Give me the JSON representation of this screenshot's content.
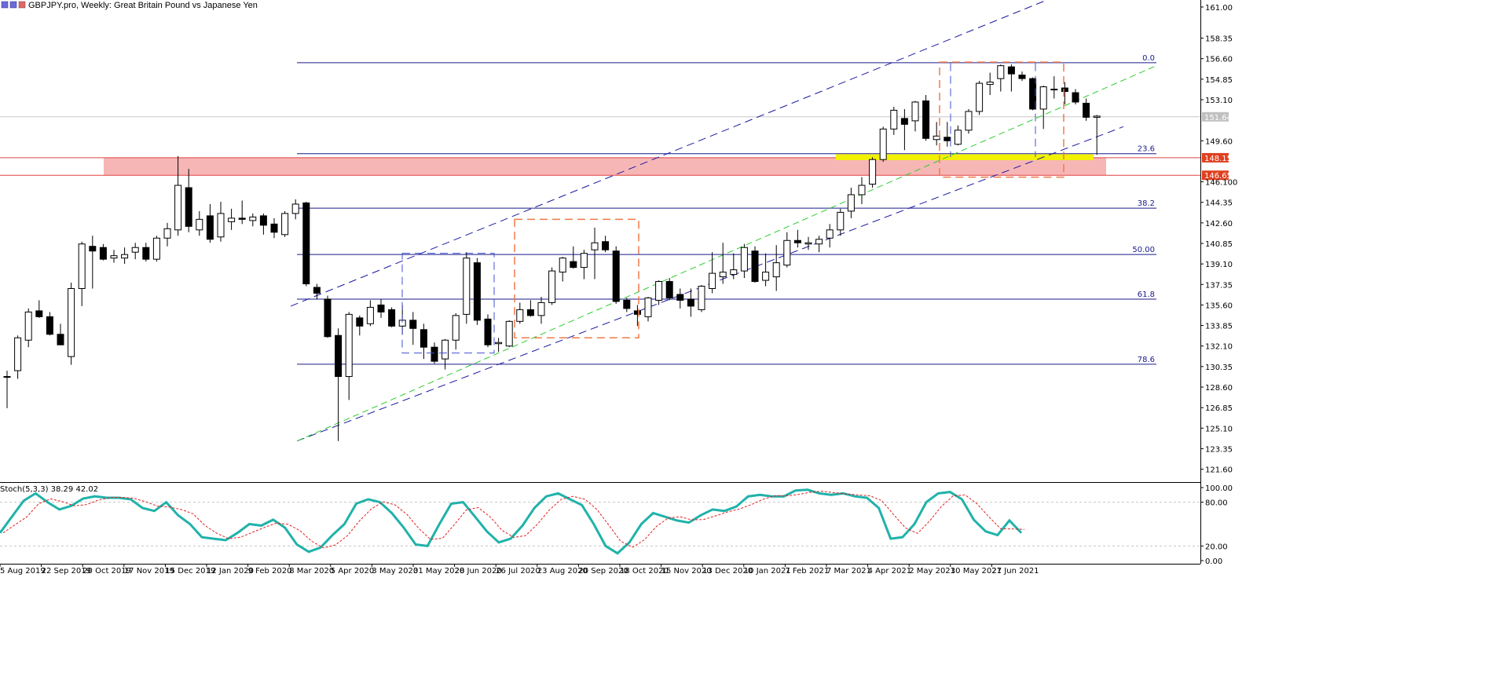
{
  "header": {
    "symbol_title": "GBPJPY.pro, Weekly:  Great Britain Pound vs Japanese Yen",
    "icon": "chart-window-icon"
  },
  "colors": {
    "background": "#ffffff",
    "grid_line": "#c8c8c8",
    "candle_bull": "#ffffff",
    "candle_bear": "#000000",
    "candle_outline": "#000000",
    "fib": "#1a1a8a",
    "channel": "#1a1aa0",
    "trend_green": "#2ecc2e",
    "resistance_zone": "#f7b6b6",
    "resistance_line": "#e04040",
    "support_highlight": "#f2f200",
    "box_orange": "#f07a4a",
    "box_blue": "#4050d0",
    "stoch_main": "#20b2aa",
    "stoch_signal": "#e02020",
    "price_tag_bg": "#e04020",
    "current_tag_bg": "#c0c0c0"
  },
  "price_axis": {
    "labels": [
      "161.00",
      "158.35",
      "156.60",
      "154.85",
      "153.10",
      "151.642",
      "149.60",
      "148.151",
      "146.658",
      "146.100",
      "144.35",
      "142.60",
      "140.85",
      "139.10",
      "137.35",
      "135.60",
      "133.85",
      "132.10",
      "130.35",
      "128.60",
      "126.85",
      "125.10",
      "123.35",
      "121.60"
    ],
    "current_price": "151.642",
    "tag_upper": "148.151",
    "tag_lower": "146.658"
  },
  "stoch_panel": {
    "label": "Stoch(5,3,3) 38.29 42.02",
    "axis_labels": [
      "100.00",
      "80.00",
      "20.00",
      "0.00"
    ]
  },
  "fib_levels": [
    "0.0",
    "23.6",
    "38.2",
    "50.00",
    "61.8",
    "78.6"
  ],
  "time_axis": [
    "5 Aug 2019",
    "22 Sep 2019",
    "20 Oct 2019",
    "17 Nov 2019",
    "15 Dec 2019",
    "12 Jan 2020",
    "9 Feb 2020",
    "8 Mar 2020",
    "5 Apr 2020",
    "3 May 2020",
    "31 May 2020",
    "28 Jun 2020",
    "26 Jul 2020",
    "23 Aug 2020",
    "20 Sep 2020",
    "18 Oct 2020",
    "15 Nov 2020",
    "13 Dec 2020",
    "10 Jan 2021",
    "7 Feb 2021",
    "7 Mar 2021",
    "4 Apr 2021",
    "2 May 2021",
    "30 May 2021",
    "27 Jun 2021"
  ],
  "chart_data": {
    "type": "candlestick",
    "title": "GBPJPY.pro, Weekly:  Great Britain Pound vs Japanese Yen",
    "ylim": [
      120.5,
      161.6
    ],
    "fib": [
      {
        "label": "0.0",
        "price": 156.25
      },
      {
        "label": "23.6",
        "price": 148.5
      },
      {
        "label": "38.2",
        "price": 143.85
      },
      {
        "label": "50.00",
        "price": 139.9
      },
      {
        "label": "61.8",
        "price": 136.1
      },
      {
        "label": "78.6",
        "price": 130.55
      }
    ],
    "resistance_zone": [
      146.658,
      148.151
    ],
    "ohlc": [
      [
        129.5,
        130.0,
        126.8,
        129.5
      ],
      [
        130.0,
        133.0,
        129.3,
        132.8
      ],
      [
        132.6,
        135.3,
        132.0,
        135.0
      ],
      [
        135.1,
        136.0,
        134.5,
        134.6
      ],
      [
        134.6,
        135.0,
        133.0,
        133.1
      ],
      [
        133.1,
        134.0,
        132.2,
        132.2
      ],
      [
        131.2,
        137.5,
        130.5,
        137.0
      ],
      [
        137.0,
        141.0,
        135.5,
        140.8
      ],
      [
        140.6,
        141.5,
        137.0,
        140.2
      ],
      [
        140.5,
        140.8,
        139.4,
        139.5
      ],
      [
        139.6,
        140.3,
        139.2,
        139.8
      ],
      [
        139.6,
        140.5,
        139.1,
        139.9
      ],
      [
        140.1,
        140.9,
        139.5,
        140.5
      ],
      [
        140.5,
        140.9,
        139.3,
        139.5
      ],
      [
        139.5,
        141.5,
        139.3,
        141.3
      ],
      [
        141.3,
        142.6,
        140.6,
        142.1
      ],
      [
        142.0,
        148.3,
        141.5,
        145.8
      ],
      [
        145.6,
        147.2,
        141.8,
        142.3
      ],
      [
        142.0,
        143.6,
        141.5,
        142.9
      ],
      [
        143.2,
        144.2,
        140.9,
        141.2
      ],
      [
        141.4,
        144.4,
        141.0,
        143.4
      ],
      [
        142.7,
        143.8,
        142.0,
        143.0
      ],
      [
        143.0,
        144.5,
        142.5,
        142.9
      ],
      [
        142.8,
        143.4,
        142.3,
        143.1
      ],
      [
        143.2,
        143.4,
        141.6,
        142.4
      ],
      [
        142.5,
        143.0,
        141.3,
        141.8
      ],
      [
        141.6,
        143.6,
        141.4,
        143.4
      ],
      [
        143.4,
        144.6,
        142.9,
        144.2
      ],
      [
        144.3,
        144.4,
        137.2,
        137.4
      ],
      [
        137.1,
        137.4,
        136.1,
        136.6
      ],
      [
        136.1,
        136.4,
        132.8,
        132.9
      ],
      [
        133.0,
        133.6,
        124.0,
        129.5
      ],
      [
        129.5,
        135.0,
        127.5,
        134.8
      ],
      [
        134.5,
        134.7,
        133.0,
        133.8
      ],
      [
        134.0,
        136.0,
        133.8,
        135.4
      ],
      [
        135.6,
        136.1,
        134.5,
        135.0
      ],
      [
        135.2,
        135.4,
        133.7,
        133.8
      ],
      [
        133.8,
        135.6,
        133.1,
        134.3
      ],
      [
        134.3,
        135.0,
        132.2,
        133.6
      ],
      [
        133.5,
        134.0,
        131.0,
        132.0
      ],
      [
        132.0,
        132.4,
        130.6,
        130.8
      ],
      [
        131.0,
        132.7,
        130.1,
        132.6
      ],
      [
        132.6,
        134.9,
        131.8,
        134.7
      ],
      [
        134.8,
        140.1,
        134.0,
        139.6
      ],
      [
        139.2,
        139.6,
        133.9,
        134.3
      ],
      [
        134.4,
        134.8,
        132.0,
        132.2
      ],
      [
        132.3,
        132.8,
        131.6,
        132.4
      ],
      [
        132.1,
        134.3,
        132.0,
        134.2
      ],
      [
        134.2,
        135.8,
        134.0,
        135.2
      ],
      [
        135.2,
        136.0,
        134.6,
        134.7
      ],
      [
        134.7,
        136.3,
        134.0,
        135.8
      ],
      [
        135.8,
        138.8,
        135.6,
        138.5
      ],
      [
        138.4,
        139.7,
        137.6,
        139.6
      ],
      [
        139.3,
        140.6,
        138.7,
        138.8
      ],
      [
        138.8,
        140.3,
        137.8,
        140.0
      ],
      [
        140.3,
        142.2,
        137.8,
        140.9
      ],
      [
        141.0,
        141.5,
        140.1,
        140.3
      ],
      [
        140.2,
        140.6,
        135.7,
        135.9
      ],
      [
        136.0,
        136.2,
        135.0,
        135.3
      ],
      [
        135.1,
        135.6,
        133.8,
        134.8
      ],
      [
        134.6,
        136.3,
        134.2,
        136.2
      ],
      [
        136.0,
        137.7,
        135.6,
        137.6
      ],
      [
        137.6,
        137.9,
        136.0,
        136.2
      ],
      [
        136.5,
        137.0,
        135.3,
        136.0
      ],
      [
        136.1,
        137.0,
        134.6,
        135.5
      ],
      [
        135.2,
        137.3,
        135.0,
        137.2
      ],
      [
        137.0,
        140.1,
        136.6,
        138.3
      ],
      [
        138.0,
        140.9,
        137.4,
        138.4
      ],
      [
        138.2,
        140.0,
        137.8,
        138.6
      ],
      [
        138.5,
        140.8,
        137.9,
        140.5
      ],
      [
        140.2,
        140.6,
        137.5,
        137.6
      ],
      [
        137.7,
        140.0,
        137.2,
        138.4
      ],
      [
        138.0,
        140.7,
        136.8,
        139.2
      ],
      [
        139.0,
        141.8,
        138.8,
        141.1
      ],
      [
        141.1,
        142.0,
        140.5,
        140.9
      ],
      [
        140.8,
        141.4,
        140.3,
        140.9
      ],
      [
        140.8,
        141.5,
        140.1,
        141.2
      ],
      [
        141.3,
        142.5,
        140.5,
        142.0
      ],
      [
        142.0,
        143.8,
        141.5,
        143.5
      ],
      [
        143.6,
        145.6,
        143.0,
        145.0
      ],
      [
        145.0,
        146.5,
        144.2,
        145.8
      ],
      [
        145.9,
        148.2,
        145.6,
        148.0
      ],
      [
        148.0,
        150.8,
        147.8,
        150.6
      ],
      [
        150.6,
        152.5,
        150.1,
        152.2
      ],
      [
        151.5,
        152.3,
        148.8,
        151.0
      ],
      [
        151.3,
        153.0,
        150.4,
        152.9
      ],
      [
        153.0,
        153.5,
        149.6,
        149.8
      ],
      [
        149.7,
        151.2,
        149.2,
        150.0
      ],
      [
        149.9,
        151.2,
        149.1,
        149.6
      ],
      [
        149.3,
        150.9,
        149.2,
        150.5
      ],
      [
        150.5,
        152.3,
        150.2,
        152.1
      ],
      [
        152.1,
        154.7,
        151.8,
        154.5
      ],
      [
        154.4,
        155.4,
        153.5,
        154.6
      ],
      [
        154.9,
        156.1,
        153.8,
        156.0
      ],
      [
        155.9,
        156.1,
        153.8,
        155.3
      ],
      [
        155.2,
        155.5,
        154.7,
        154.9
      ],
      [
        154.9,
        155.0,
        152.2,
        152.3
      ],
      [
        152.3,
        154.3,
        150.6,
        154.2
      ],
      [
        154.0,
        155.1,
        153.2,
        154.0
      ],
      [
        154.1,
        154.6,
        152.7,
        153.8
      ],
      [
        153.7,
        154.0,
        152.7,
        152.9
      ],
      [
        152.8,
        153.2,
        151.3,
        151.6
      ],
      [
        151.6,
        151.8,
        148.4,
        151.7
      ]
    ],
    "stoch_main": [
      38,
      60,
      82,
      92,
      80,
      70,
      75,
      85,
      88,
      86,
      86,
      84,
      72,
      68,
      80,
      62,
      50,
      32,
      30,
      28,
      38,
      50,
      48,
      56,
      45,
      22,
      12,
      18,
      35,
      50,
      78,
      84,
      80,
      65,
      45,
      22,
      20,
      50,
      78,
      80,
      60,
      40,
      25,
      30,
      48,
      72,
      88,
      92,
      84,
      76,
      50,
      20,
      10,
      25,
      50,
      65,
      60,
      55,
      52,
      62,
      70,
      68,
      74,
      88,
      90,
      88,
      88,
      96,
      97,
      92,
      90,
      92,
      88,
      86,
      72,
      30,
      32,
      50,
      80,
      92,
      94,
      84,
      56,
      40,
      35,
      55,
      38
    ]
  }
}
